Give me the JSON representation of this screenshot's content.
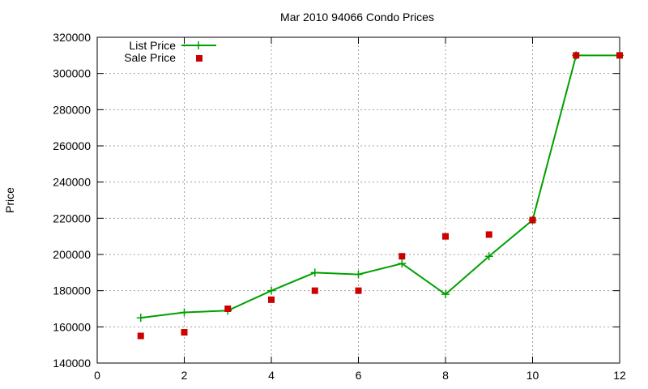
{
  "chart_data": {
    "type": "line",
    "title": "Mar 2010 94066 Condo Prices",
    "xlabel": "",
    "ylabel": "Price",
    "xlim": [
      0,
      12
    ],
    "ylim": [
      140000,
      320000
    ],
    "x_ticks": [
      "0",
      "2",
      "4",
      "6",
      "8",
      "10",
      "12"
    ],
    "y_ticks": [
      "140000",
      "160000",
      "180000",
      "200000",
      "220000",
      "240000",
      "260000",
      "280000",
      "300000",
      "320000"
    ],
    "grid": true,
    "legend_position": "top-left",
    "series": [
      {
        "name": "List Price",
        "kind": "line-with-plus-markers",
        "color": "#00a000",
        "x": [
          1,
          2,
          3,
          4,
          5,
          6,
          7,
          8,
          9,
          10,
          11,
          12
        ],
        "y": [
          165000,
          168000,
          169000,
          180000,
          190000,
          189000,
          195000,
          178000,
          199000,
          219000,
          310000,
          310000
        ]
      },
      {
        "name": "Sale Price",
        "kind": "square-markers",
        "color": "#cc0000",
        "x": [
          1,
          2,
          3,
          4,
          5,
          6,
          7,
          8,
          9,
          10,
          11,
          12
        ],
        "y": [
          155000,
          157000,
          170000,
          175000,
          180000,
          180000,
          199000,
          210000,
          211000,
          219000,
          310000,
          310000
        ]
      }
    ]
  }
}
